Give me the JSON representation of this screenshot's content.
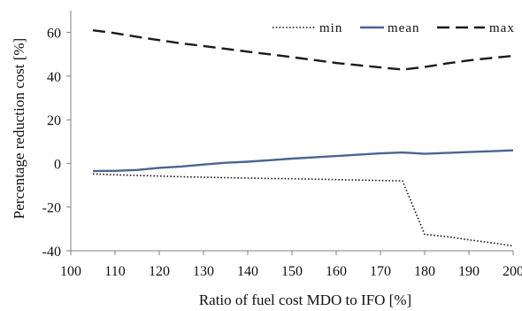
{
  "chart_data": {
    "type": "line",
    "title": "",
    "xlabel": "Ratio of fuel cost MDO to IFO [%]",
    "ylabel": "Percentage reduction cost [%]",
    "xlim": [
      100,
      200
    ],
    "ylim": [
      -40,
      70
    ],
    "x_ticks": [
      100,
      110,
      120,
      130,
      140,
      150,
      160,
      170,
      180,
      190,
      200
    ],
    "y_ticks": [
      -40,
      -20,
      0,
      20,
      40,
      60
    ],
    "x_tick_labels": [
      "100",
      "110",
      "120",
      "130",
      "140",
      "150",
      "160",
      "170",
      "180",
      "190",
      "200"
    ],
    "y_tick_labels": [
      "-40",
      "-20",
      "0",
      "20",
      "40",
      "60"
    ],
    "grid": false,
    "legend": {
      "position": "top-right"
    },
    "series": [
      {
        "name": "min",
        "style": "dotted",
        "color": "#1a1a1a",
        "x": [
          105,
          110,
          115,
          120,
          125,
          130,
          135,
          140,
          145,
          150,
          155,
          160,
          165,
          170,
          175,
          180,
          185,
          190,
          195,
          200
        ],
        "y": [
          -4.8,
          -5.2,
          -5.5,
          -5.8,
          -6.1,
          -6.3,
          -6.5,
          -6.7,
          -6.9,
          -7.0,
          -7.2,
          -7.4,
          -7.6,
          -7.8,
          -8.0,
          -32.5,
          -33.5,
          -35.0,
          -36.3,
          -37.8
        ]
      },
      {
        "name": "mean",
        "style": "solid",
        "color": "#4a6590",
        "x": [
          105,
          110,
          115,
          120,
          125,
          130,
          135,
          140,
          145,
          150,
          155,
          160,
          165,
          170,
          175,
          180,
          185,
          190,
          195,
          200
        ],
        "y": [
          -3.5,
          -3.4,
          -3.0,
          -2.0,
          -1.4,
          -0.5,
          0.3,
          0.8,
          1.5,
          2.2,
          2.8,
          3.4,
          4.0,
          4.6,
          5.0,
          4.4,
          4.8,
          5.2,
          5.6,
          6.0
        ]
      },
      {
        "name": "max",
        "style": "dashed",
        "color": "#1a1a1a",
        "x": [
          105,
          110,
          115,
          120,
          125,
          130,
          135,
          140,
          145,
          150,
          155,
          160,
          165,
          170,
          175,
          180,
          185,
          190,
          195,
          200
        ],
        "y": [
          61.0,
          59.7,
          58.0,
          56.5,
          55.0,
          53.8,
          52.5,
          51.2,
          50.0,
          48.7,
          47.4,
          46.0,
          45.0,
          44.0,
          43.0,
          44.2,
          45.8,
          47.2,
          48.3,
          49.3
        ]
      }
    ]
  }
}
